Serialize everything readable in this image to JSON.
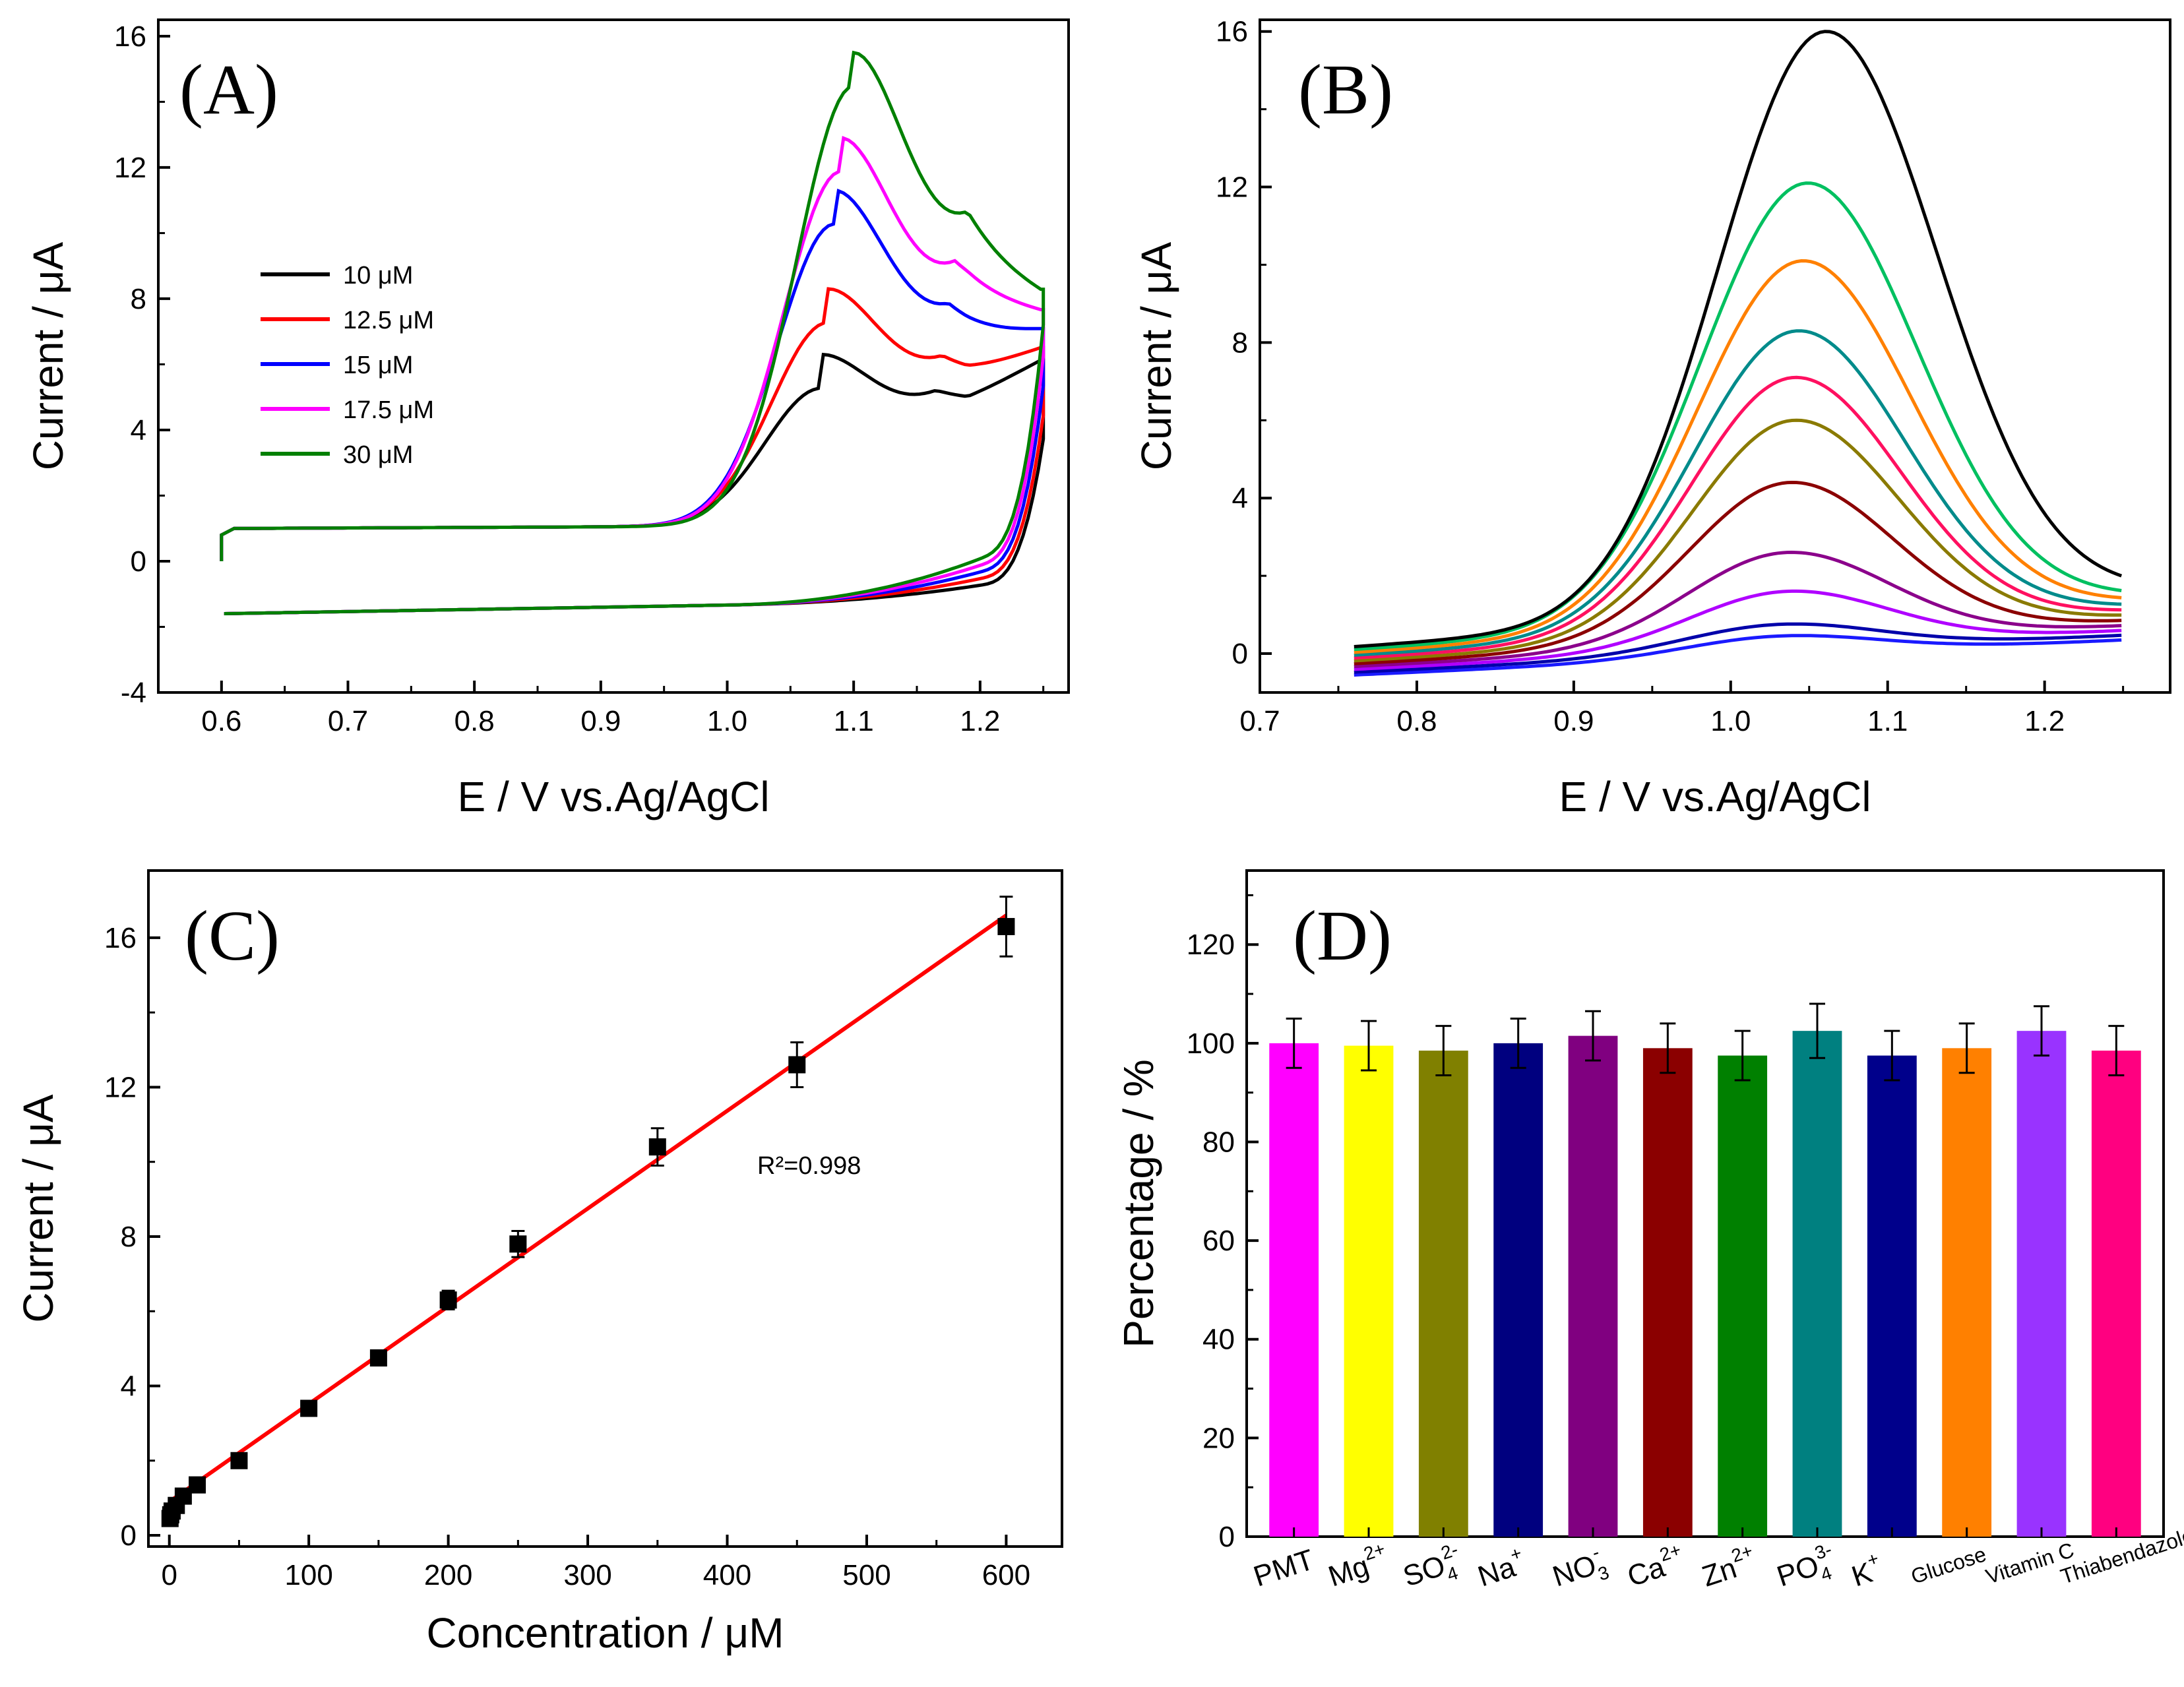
{
  "chart_data": [
    {
      "panel": "(A)",
      "type": "line",
      "title": "",
      "xlabel": "E / V vs.Ag/AgCl",
      "ylabel": "Current / μA",
      "xlim": [
        0.55,
        1.27
      ],
      "ylim": [
        -4,
        16.5
      ],
      "xticks": [
        "0.6",
        "0.7",
        "0.8",
        "0.9",
        "1.0",
        "1.1",
        "1.2"
      ],
      "yticks": [
        "-4",
        "0",
        "4",
        "8",
        "12",
        "16"
      ],
      "legend_position": "left",
      "series": [
        {
          "name": "10 μM",
          "color": "#000000",
          "peak_potential": 1.075,
          "peak_current": 6.3,
          "valley_current": 4.9
        },
        {
          "name": "12.5 μM",
          "color": "#ff0000",
          "peak_potential": 1.08,
          "peak_current": 8.3,
          "valley_current": 5.7
        },
        {
          "name": "15 μM",
          "color": "#0000ff",
          "peak_potential": 1.085,
          "peak_current": 11.3,
          "valley_current": 6.9
        },
        {
          "name": "17.5 μM",
          "color": "#ff00ff",
          "peak_potential": 1.09,
          "peak_current": 12.9,
          "valley_current": 8.1
        },
        {
          "name": "30 μM",
          "color": "#008000",
          "peak_potential": 1.1,
          "peak_current": 15.5,
          "valley_current": 9.3
        }
      ]
    },
    {
      "panel": "(B)",
      "type": "line",
      "title": "",
      "xlabel": "E / V vs.Ag/AgCl",
      "ylabel": "Current / μA",
      "xlim": [
        0.7,
        1.28
      ],
      "ylim": [
        -1,
        16.3
      ],
      "xticks": [
        "0.7",
        "0.8",
        "0.9",
        "1.0",
        "1.1",
        "1.2"
      ],
      "yticks": [
        "0",
        "4",
        "8",
        "12",
        "16"
      ],
      "series": [
        {
          "color": "#1a1aff",
          "peak_potential": 1.03,
          "peak_current": 0.45
        },
        {
          "color": "#0000aa",
          "peak_potential": 1.03,
          "peak_current": 0.75
        },
        {
          "color": "#b000ff",
          "peak_potential": 1.035,
          "peak_current": 1.6
        },
        {
          "color": "#8b008b",
          "peak_potential": 1.035,
          "peak_current": 2.6
        },
        {
          "color": "#8b0000",
          "peak_potential": 1.037,
          "peak_current": 4.4
        },
        {
          "color": "#8a7a00",
          "peak_potential": 1.04,
          "peak_current": 6.0
        },
        {
          "color": "#ff1060",
          "peak_potential": 1.04,
          "peak_current": 7.1
        },
        {
          "color": "#008b8b",
          "peak_potential": 1.042,
          "peak_current": 8.3
        },
        {
          "color": "#ff8000",
          "peak_potential": 1.045,
          "peak_current": 10.1
        },
        {
          "color": "#00c060",
          "peak_potential": 1.048,
          "peak_current": 12.1
        },
        {
          "color": "#000000",
          "peak_potential": 1.06,
          "peak_current": 16.0
        }
      ]
    },
    {
      "panel": "(C)",
      "type": "scatter",
      "title": "",
      "xlabel": "Concentration / μM",
      "ylabel": "Current / μA",
      "xlim": [
        -15,
        640
      ],
      "ylim": [
        -0.3,
        17.8
      ],
      "xticks": [
        "0",
        "100",
        "200",
        "300",
        "400",
        "500",
        "600"
      ],
      "yticks": [
        "0",
        "4",
        "8",
        "12",
        "16"
      ],
      "annotation": "R²=0.998",
      "points": [
        {
          "x": 0.5,
          "y": 0.45,
          "err": 0.1
        },
        {
          "x": 1,
          "y": 0.55,
          "err": 0.1
        },
        {
          "x": 2,
          "y": 0.65,
          "err": 0.1
        },
        {
          "x": 5,
          "y": 0.8,
          "err": 0.1
        },
        {
          "x": 10,
          "y": 1.05,
          "err": 0.1
        },
        {
          "x": 20,
          "y": 1.35,
          "err": 0.1
        },
        {
          "x": 50,
          "y": 2.0,
          "err": 0.12
        },
        {
          "x": 100,
          "y": 3.4,
          "err": 0.2
        },
        {
          "x": 150,
          "y": 4.75,
          "err": 0.15
        },
        {
          "x": 200,
          "y": 6.3,
          "err": 0.25
        },
        {
          "x": 250,
          "y": 7.8,
          "err": 0.35
        },
        {
          "x": 350,
          "y": 10.4,
          "err": 0.5
        },
        {
          "x": 450,
          "y": 12.6,
          "err": 0.6
        },
        {
          "x": 600,
          "y": 16.3,
          "err": 0.8
        }
      ],
      "fit": {
        "color": "#ff0000",
        "x": [
          0,
          600
        ],
        "y": [
          0.9,
          16.6
        ]
      }
    },
    {
      "panel": "(D)",
      "type": "bar",
      "title": "",
      "xlabel": "",
      "ylabel": "Percentage / %",
      "ylim": [
        0,
        135
      ],
      "yticks": [
        "0",
        "20",
        "40",
        "60",
        "80",
        "100",
        "120"
      ],
      "bars": [
        {
          "label": "PMT",
          "sup": "",
          "sub": "",
          "value": 100,
          "err": 5,
          "color": "#ff00ff"
        },
        {
          "label": "Mg",
          "sup": "2+",
          "sub": "",
          "value": 99.5,
          "err": 5,
          "color": "#ffff00"
        },
        {
          "label": "SO",
          "sup": "2-",
          "sub": "4",
          "value": 98.5,
          "err": 5,
          "color": "#808000"
        },
        {
          "label": "Na",
          "sup": "+",
          "sub": "",
          "value": 100,
          "err": 5,
          "color": "#00007f"
        },
        {
          "label": "NO",
          "sup": "-",
          "sub": "3",
          "value": 101.5,
          "err": 5,
          "color": "#800080"
        },
        {
          "label": "Ca",
          "sup": "2+",
          "sub": "",
          "value": 99,
          "err": 5,
          "color": "#8b0000"
        },
        {
          "label": "Zn",
          "sup": "2+",
          "sub": "",
          "value": 97.5,
          "err": 5,
          "color": "#008000"
        },
        {
          "label": "PO",
          "sup": "3-",
          "sub": "4",
          "value": 102.5,
          "err": 5.5,
          "color": "#008080"
        },
        {
          "label": "K",
          "sup": "+",
          "sub": "",
          "value": 97.5,
          "err": 5,
          "color": "#00008b"
        },
        {
          "label": "Glucose",
          "sup": "",
          "sub": "",
          "value": 99,
          "err": 5,
          "color": "#ff8000"
        },
        {
          "label": "Vitamin C",
          "sup": "",
          "sub": "",
          "value": 102.5,
          "err": 5,
          "color": "#9933ff"
        },
        {
          "label": "Thiabendazole",
          "sup": "",
          "sub": "",
          "value": 98.5,
          "err": 5,
          "color": "#ff0080"
        }
      ]
    }
  ]
}
